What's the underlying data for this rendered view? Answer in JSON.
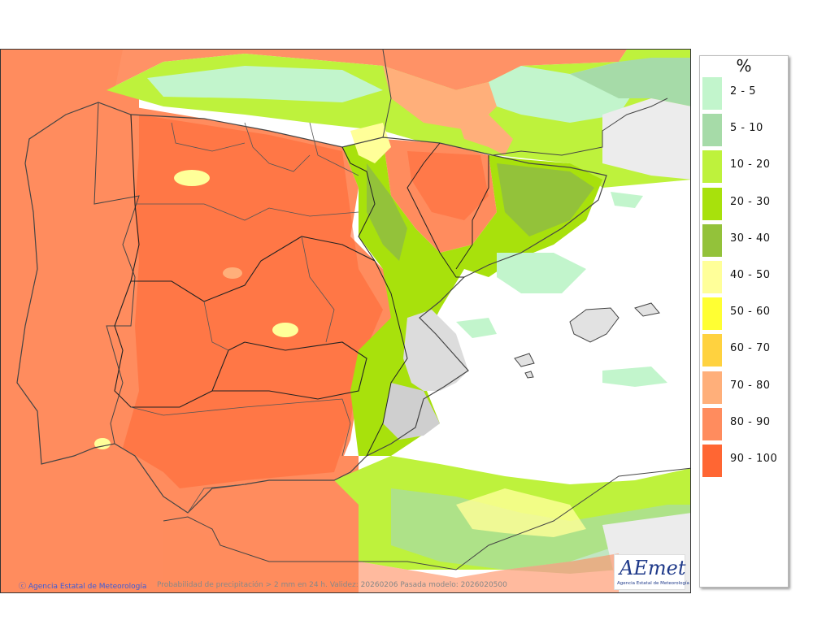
{
  "map": {
    "credit_agency": "Agencia Estatal de Meteorología",
    "caption": "Probabilidad de precipitación > 2 mm en 24 h. Validez: 20260206 Pasada modelo: 2026020500"
  },
  "logo": {
    "text": "AEmet",
    "subtitle": "Agencia Estatal de Meteorología"
  },
  "legend": {
    "unit": "%",
    "classes": [
      {
        "label": "2 - 5",
        "color": "#c2f5cc"
      },
      {
        "label": "5 - 10",
        "color": "#a6dba8"
      },
      {
        "label": "10 - 20",
        "color": "#bef23c"
      },
      {
        "label": "20 - 30",
        "color": "#a8e10c"
      },
      {
        "label": "30 - 40",
        "color": "#93c23a"
      },
      {
        "label": "40 - 50",
        "color": "#ffff99"
      },
      {
        "label": "50 - 60",
        "color": "#ffff33"
      },
      {
        "label": "60 - 70",
        "color": "#ffd23f"
      },
      {
        "label": "70 - 80",
        "color": "#ffaf7a"
      },
      {
        "label": "80 - 90",
        "color": "#ff8c5e"
      },
      {
        "label": "90 - 100",
        "color": "#ff6633"
      }
    ]
  }
}
